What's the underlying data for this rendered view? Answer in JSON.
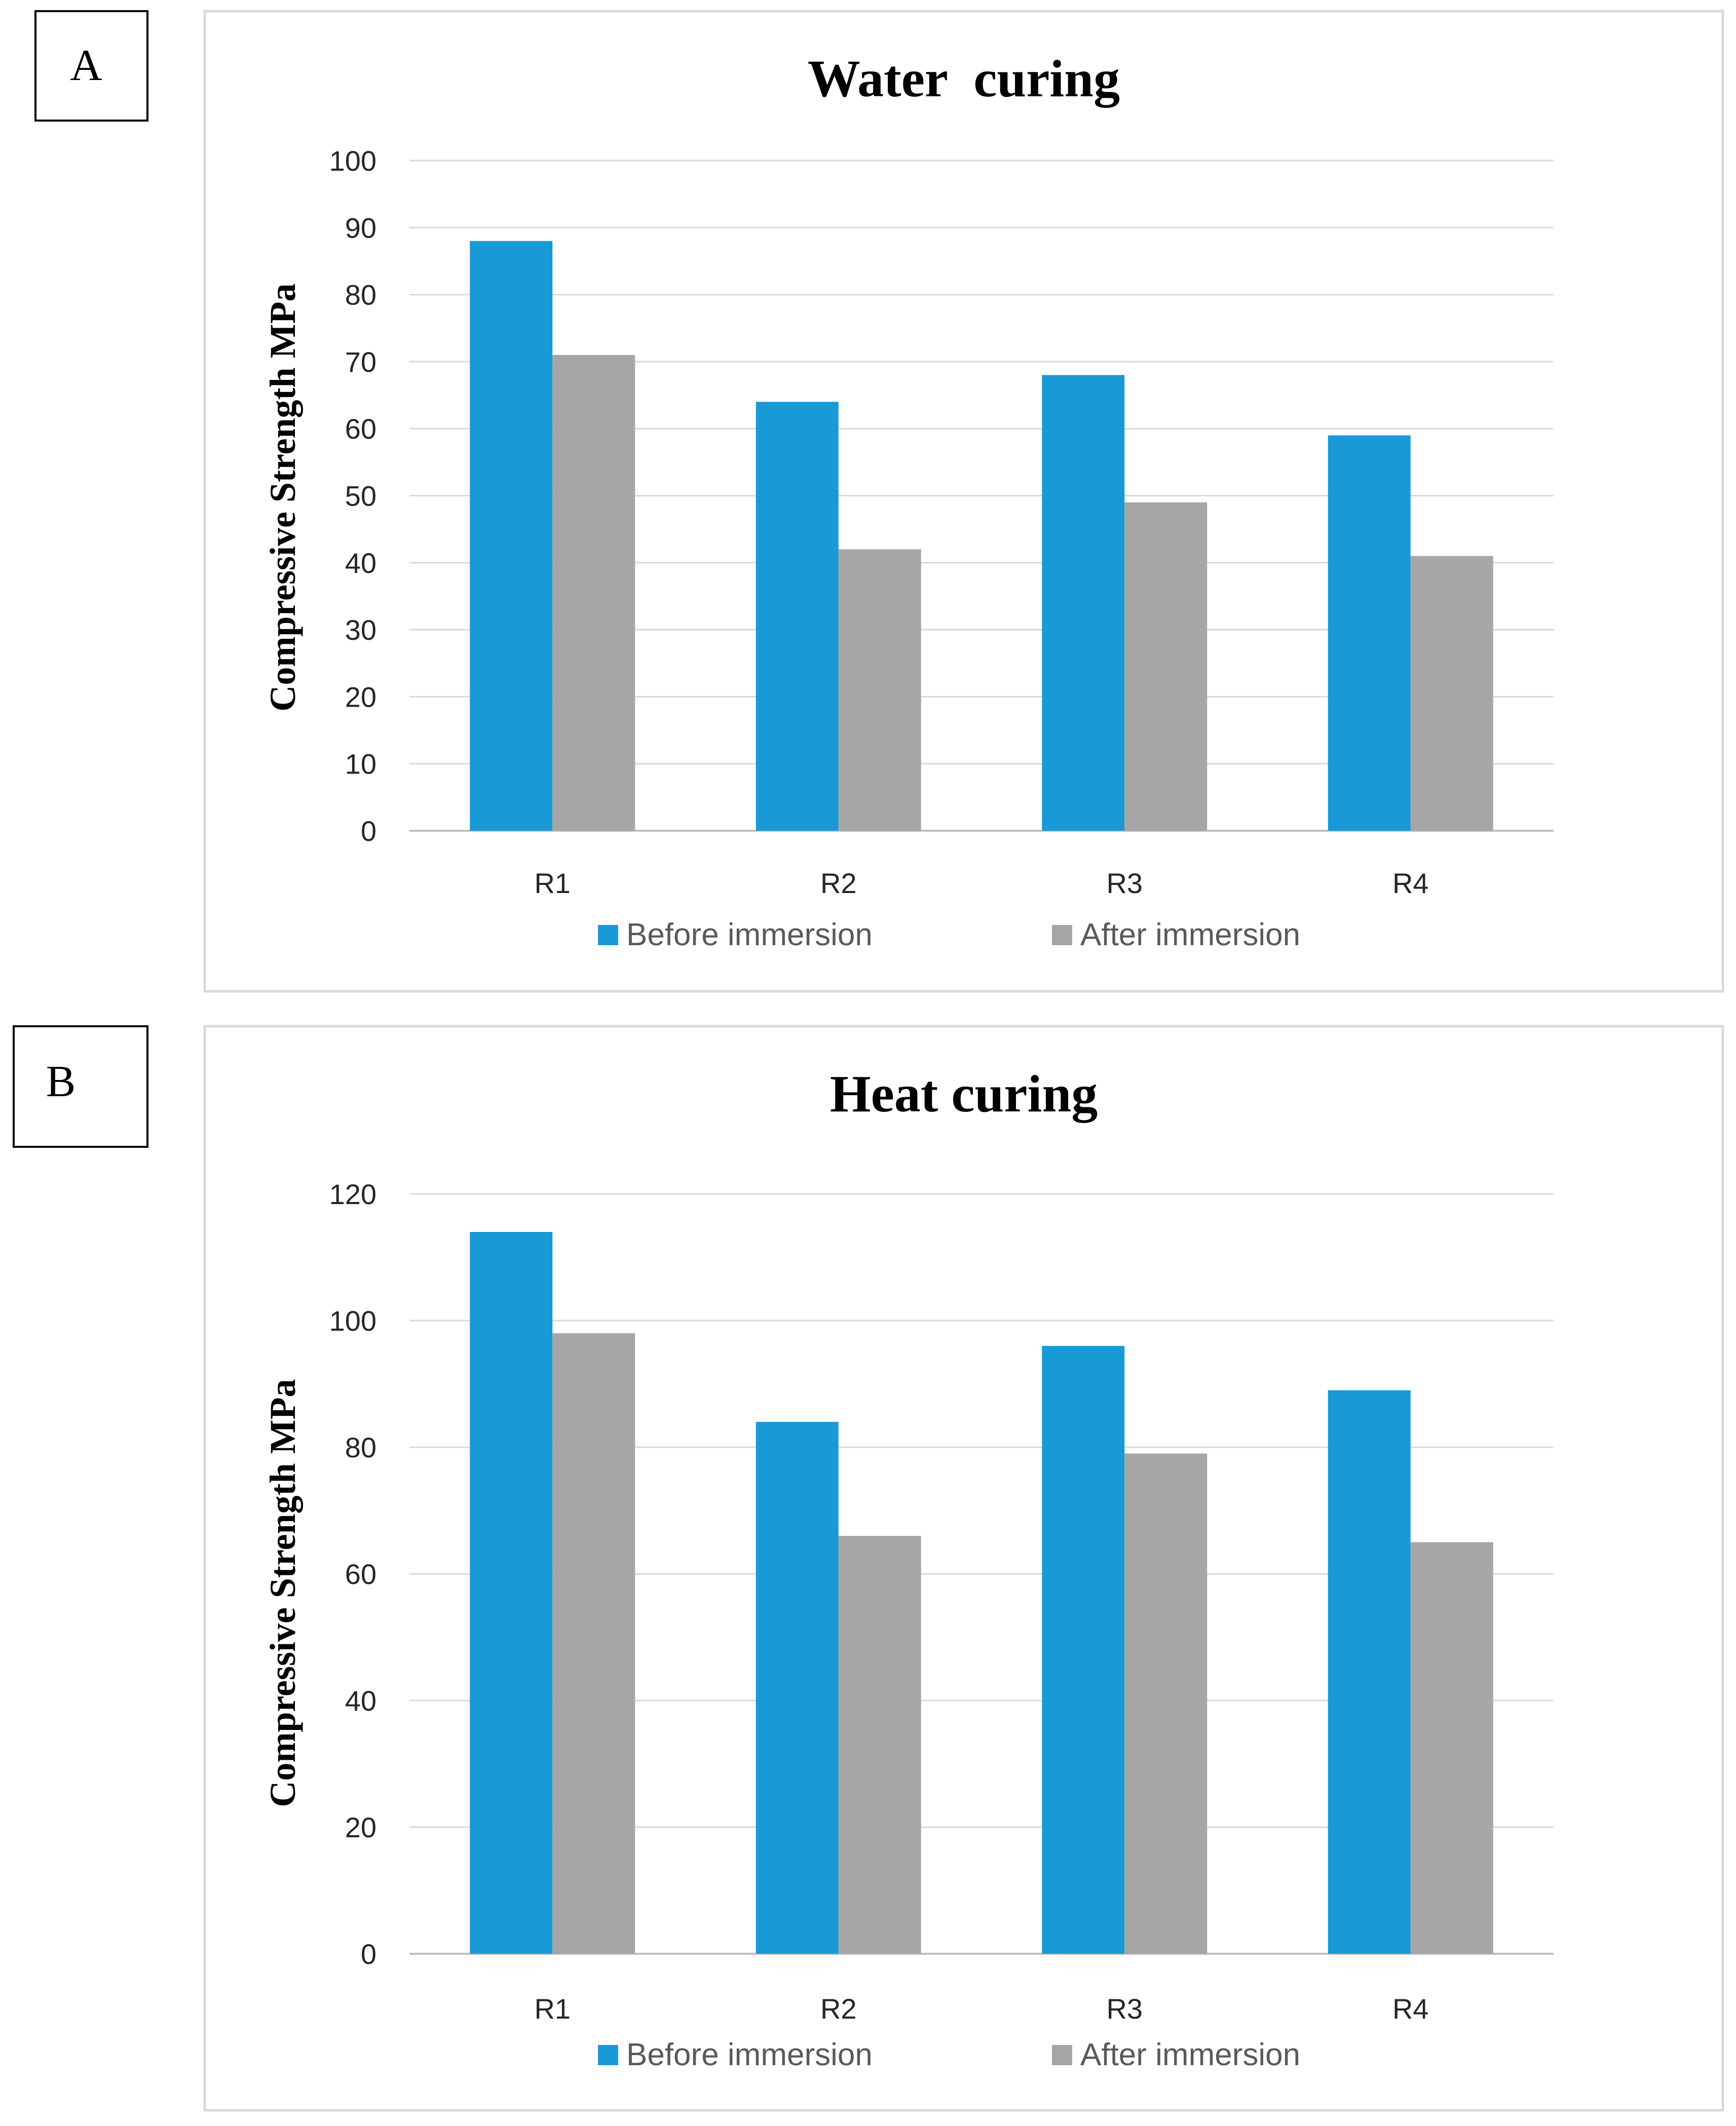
{
  "chart_data": [
    {
      "panel": "A",
      "type": "bar",
      "title": "Water  curing",
      "xlabel": "",
      "ylabel": "Compressive Strength MPa",
      "ylim": [
        0,
        100
      ],
      "yticks": [
        0,
        10,
        20,
        30,
        40,
        50,
        60,
        70,
        80,
        90,
        100
      ],
      "grid": true,
      "legend_position": "bottom",
      "categories": [
        "R1",
        "R2",
        "R3",
        "R4"
      ],
      "series": [
        {
          "name": "Before immersion",
          "color": "#1999D6",
          "values": [
            88,
            64,
            68,
            59
          ]
        },
        {
          "name": "After immersion",
          "color": "#A6A6A6",
          "values": [
            71,
            42,
            49,
            41
          ]
        }
      ]
    },
    {
      "panel": "B",
      "type": "bar",
      "title": "Heat curing",
      "xlabel": "",
      "ylabel": "Compressive Strength MPa",
      "ylim": [
        0,
        120
      ],
      "yticks": [
        0,
        20,
        40,
        60,
        80,
        100,
        120
      ],
      "grid": true,
      "legend_position": "bottom",
      "categories": [
        "R1",
        "R2",
        "R3",
        "R4"
      ],
      "series": [
        {
          "name": "Before immersion",
          "color": "#1999D6",
          "values": [
            114,
            84,
            96,
            89
          ]
        },
        {
          "name": "After immersion",
          "color": "#A6A6A6",
          "values": [
            98,
            66,
            79,
            65
          ]
        }
      ]
    }
  ]
}
